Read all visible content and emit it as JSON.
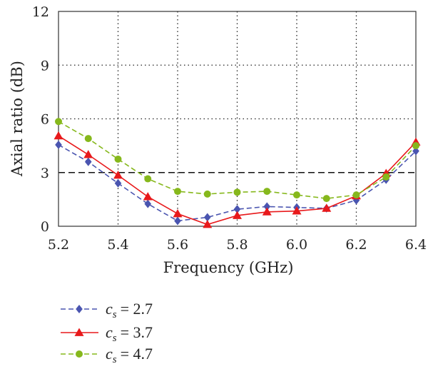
{
  "chart_data": {
    "type": "line",
    "xlabel": "Frequency (GHz)",
    "ylabel": "Axial ratio (dB)",
    "xlim": [
      5.2,
      6.4
    ],
    "ylim": [
      0,
      12
    ],
    "x_ticks": [
      "5.2",
      "5.4",
      "5.6",
      "5.8",
      "6.0",
      "6.2",
      "6.4"
    ],
    "y_ticks": [
      "0",
      "3",
      "6",
      "9",
      "12"
    ],
    "grid": "dotted",
    "reference_line": {
      "y": 3,
      "style": "dashed"
    },
    "x": [
      5.2,
      5.3,
      5.4,
      5.5,
      5.6,
      5.7,
      5.8,
      5.9,
      6.0,
      6.1,
      6.2,
      6.3,
      6.4
    ],
    "series": [
      {
        "name_symbol": "c",
        "name_subscript": "s",
        "name_value": "= 2.7",
        "color": "#4a55b0",
        "marker": "diamond",
        "dash": "dashed",
        "values": [
          4.55,
          3.6,
          2.4,
          1.25,
          0.3,
          0.5,
          0.95,
          1.1,
          1.05,
          1.0,
          1.45,
          2.6,
          4.2
        ]
      },
      {
        "name_symbol": "c",
        "name_subscript": "s",
        "name_value": "= 3.7",
        "color": "#e8191b",
        "marker": "triangle",
        "dash": "solid",
        "values": [
          5.05,
          4.0,
          2.85,
          1.65,
          0.7,
          0.1,
          0.6,
          0.8,
          0.85,
          1.0,
          1.7,
          2.95,
          4.7
        ]
      },
      {
        "name_symbol": "c",
        "name_subscript": "s",
        "name_value": "= 4.7",
        "color": "#86b81c",
        "marker": "circle",
        "dash": "dashed",
        "values": [
          5.85,
          4.9,
          3.75,
          2.65,
          1.95,
          1.8,
          1.9,
          1.95,
          1.75,
          1.55,
          1.75,
          2.75,
          4.5
        ]
      }
    ],
    "legend_position": "bottom-left"
  }
}
